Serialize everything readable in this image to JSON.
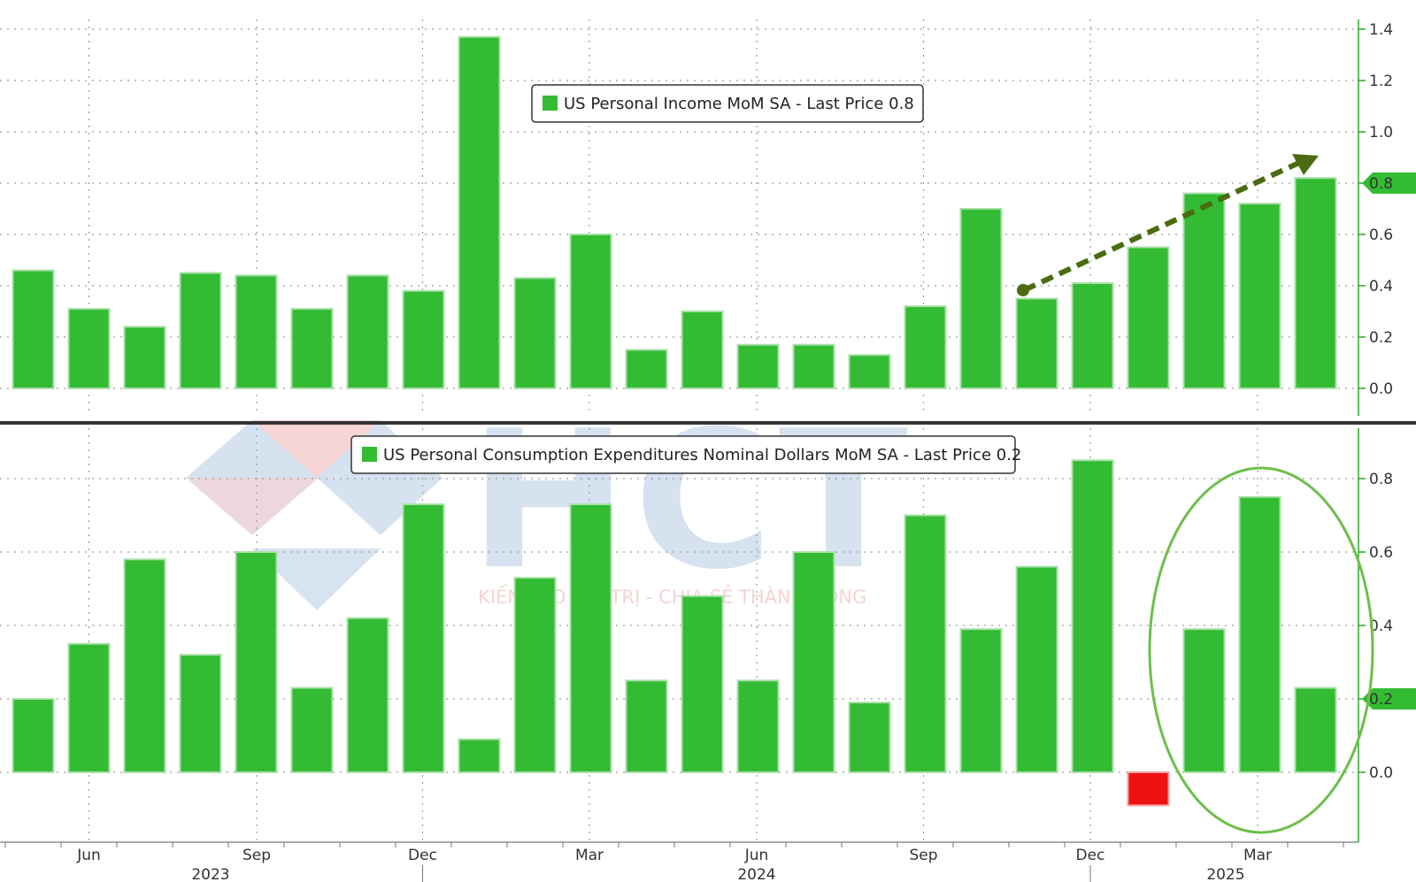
{
  "colors": {
    "bar": "#33bb33",
    "bar_edge": "#a8e0a8",
    "negative_bar": "#ee1111",
    "axis": "#2aa52a",
    "arrow": "#4a6b10",
    "ellipse": "#6cbf4a",
    "divider": "#333333",
    "watermark_blue": "#c9d9ec",
    "watermark_red": "#f2c6c6"
  },
  "watermark": {
    "logo": "HCT",
    "tagline": "KIẾN TẠO GIÁ TRỊ - CHIA SẺ THÀNH CÔNG"
  },
  "x_axis": {
    "months": [
      "Jun",
      "Sep",
      "Dec",
      "Mar",
      "Jun",
      "Sep",
      "Dec",
      "Mar"
    ],
    "years": [
      "2023",
      "2024",
      "2025"
    ]
  },
  "chart_data": [
    {
      "type": "bar",
      "panel": "top",
      "legend": "US Personal Income MoM SA - Last Price 0.8",
      "categories": [
        "2023-05",
        "2023-06",
        "2023-07",
        "2023-08",
        "2023-09",
        "2023-10",
        "2023-11",
        "2023-12",
        "2024-01",
        "2024-02",
        "2024-03",
        "2024-04",
        "2024-05",
        "2024-06",
        "2024-07",
        "2024-08",
        "2024-09",
        "2024-10",
        "2024-11",
        "2024-12",
        "2025-01",
        "2025-02",
        "2025-03",
        "2025-04"
      ],
      "values": [
        0.46,
        0.31,
        0.24,
        0.45,
        0.44,
        0.31,
        0.44,
        0.38,
        1.37,
        0.43,
        0.6,
        0.15,
        0.3,
        0.17,
        0.17,
        0.13,
        0.32,
        0.7,
        0.35,
        0.41,
        0.55,
        0.76,
        0.72,
        0.82
      ],
      "ylim": [
        -0.1,
        1.45
      ],
      "yticks": [
        "0.0",
        "0.2",
        "0.4",
        "0.6",
        "0.8",
        "1.0",
        "1.2",
        "1.4"
      ],
      "last_price_label": "0.8",
      "annotation": "uptrend arrow from 2024-11 to 2025-04",
      "grid": true
    },
    {
      "type": "bar",
      "panel": "bottom",
      "legend": "US Personal Consumption Expenditures Nominal Dollars MoM SA - Last Price 0.2",
      "categories": [
        "2023-05",
        "2023-06",
        "2023-07",
        "2023-08",
        "2023-09",
        "2023-10",
        "2023-11",
        "2023-12",
        "2024-01",
        "2024-02",
        "2024-03",
        "2024-04",
        "2024-05",
        "2024-06",
        "2024-07",
        "2024-08",
        "2024-09",
        "2024-10",
        "2024-11",
        "2024-12",
        "2025-01",
        "2025-02",
        "2025-03",
        "2025-04"
      ],
      "values": [
        0.2,
        0.35,
        0.58,
        0.32,
        0.6,
        0.23,
        0.42,
        0.73,
        0.09,
        0.53,
        0.73,
        0.25,
        0.48,
        0.25,
        0.6,
        0.19,
        0.7,
        0.39,
        0.56,
        0.85,
        -0.09,
        0.39,
        0.75,
        0.23
      ],
      "ylim": [
        -0.19,
        0.93
      ],
      "yticks": [
        "0.0",
        "0.2",
        "0.4",
        "0.6",
        "0.8"
      ],
      "last_price_label": "0.2",
      "annotation": "ellipse highlighting 2025-02 to 2025-04",
      "grid": true
    }
  ]
}
